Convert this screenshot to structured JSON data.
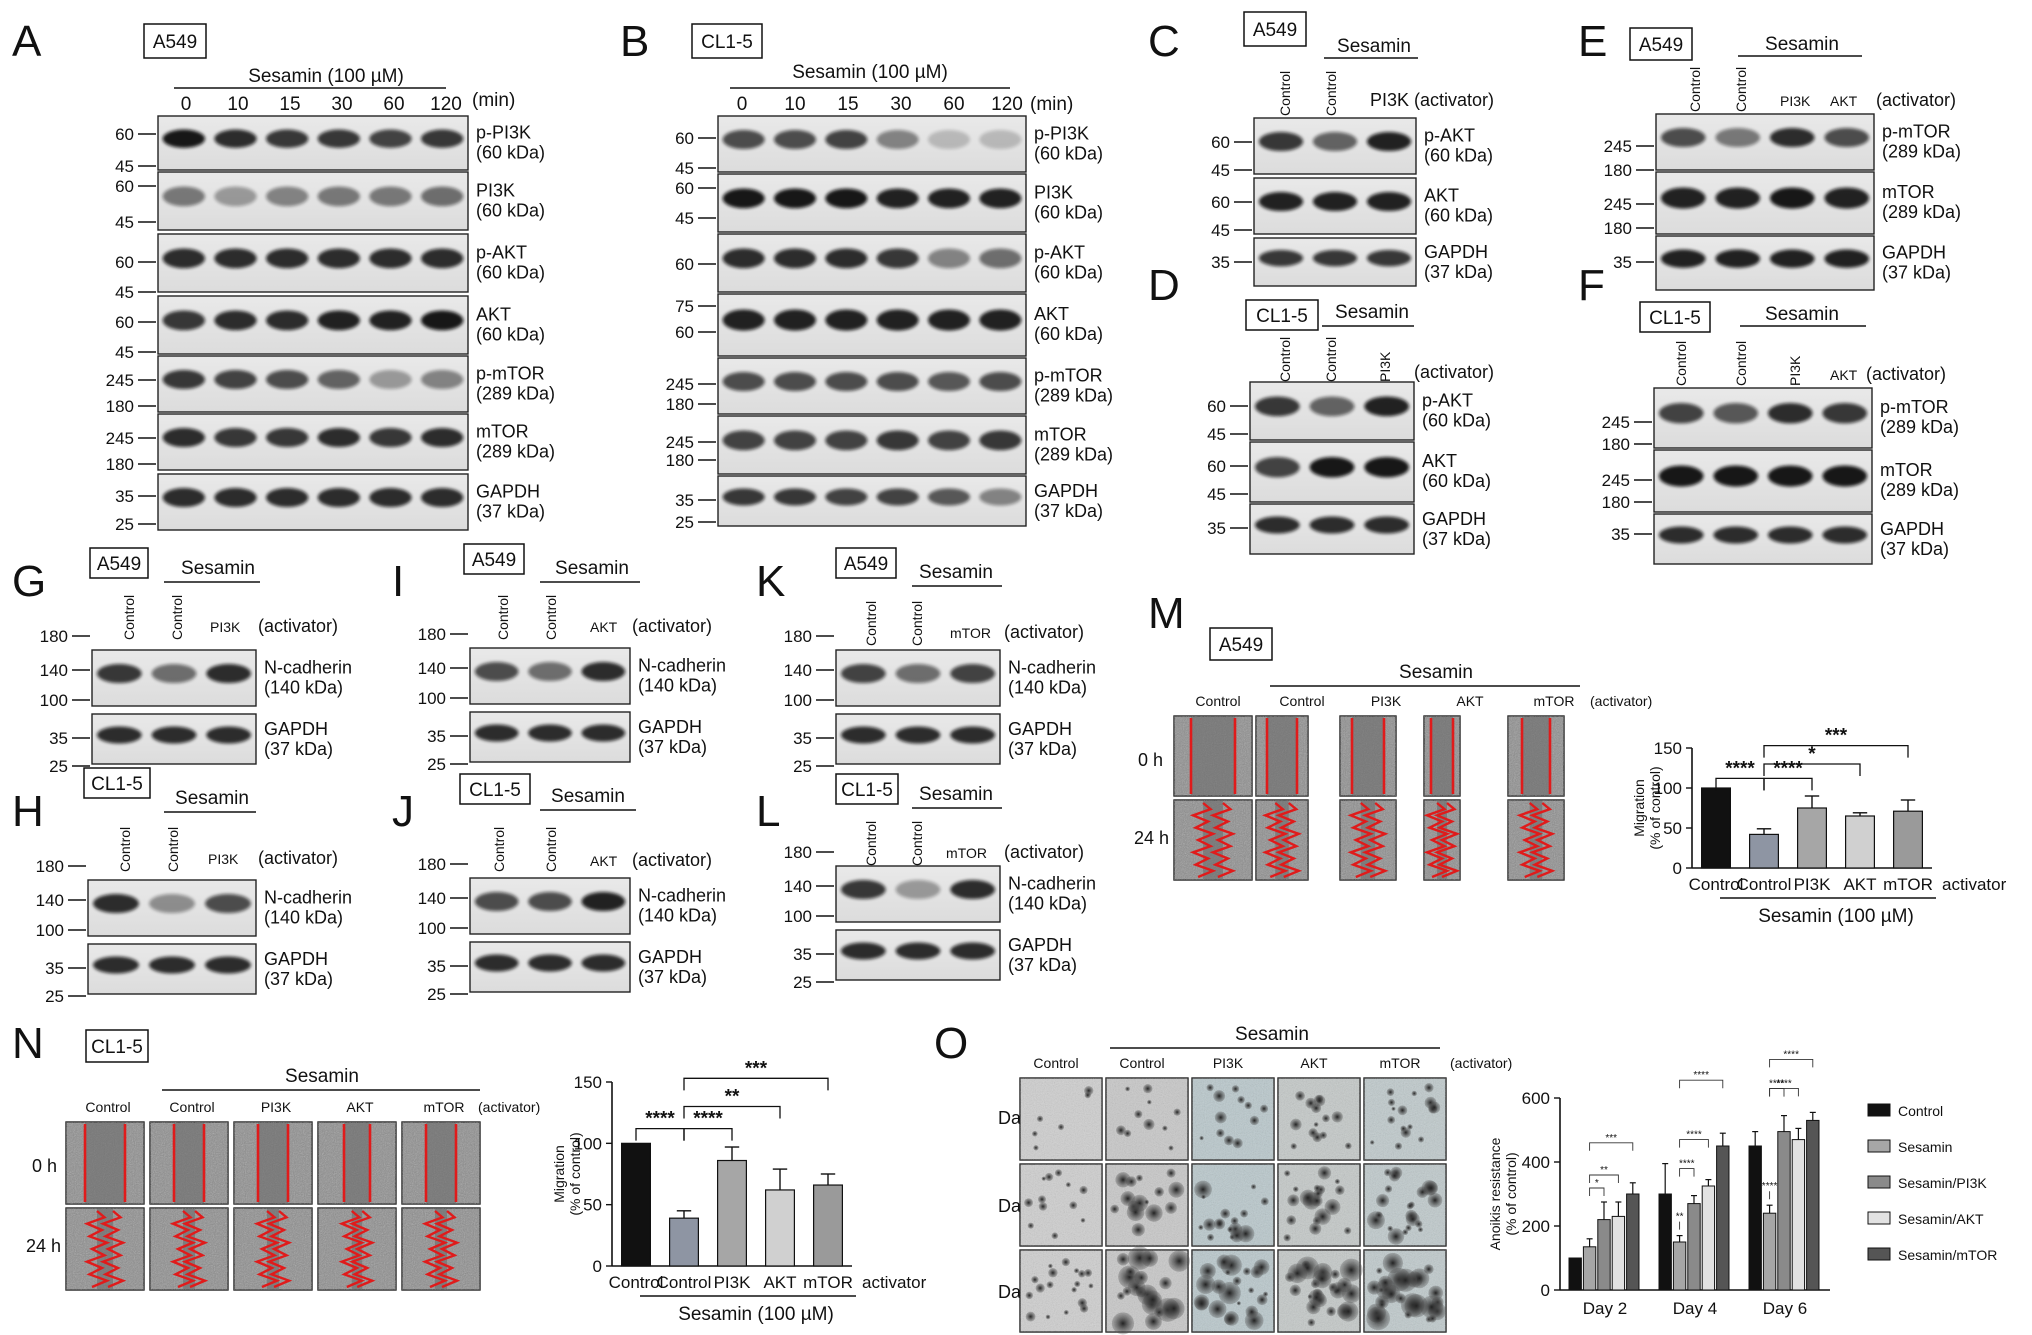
{
  "panels": {
    "A": "A",
    "B": "B",
    "C": "C",
    "D": "D",
    "E": "E",
    "F": "F",
    "G": "G",
    "H": "H",
    "I": "I",
    "J": "J",
    "K": "K",
    "L": "L",
    "M": "M",
    "N": "N",
    "O": "O"
  },
  "cells": {
    "a549": "A549",
    "cl15": "CL1-5"
  },
  "common": {
    "sesamin": "Sesamin",
    "sesamin_dose": "Sesamin (100 µM)",
    "min": "(min)",
    "activator": "(activator)",
    "activator_plain": "activator",
    "control": "Control",
    "pi3k": "PI3K",
    "akt": "AKT",
    "mtor": "mTOR"
  },
  "timepoints": [
    "0",
    "10",
    "15",
    "30",
    "60",
    "120"
  ],
  "proteins": {
    "p_pi3k": [
      "p-PI3K",
      "(60 kDa)"
    ],
    "pi3k": [
      "PI3K",
      "(60 kDa)"
    ],
    "p_akt": [
      "p-AKT",
      "(60 kDa)"
    ],
    "akt": [
      "AKT",
      "(60 kDa)"
    ],
    "p_mtor": [
      "p-mTOR",
      "(289 kDa)"
    ],
    "mtor": [
      "mTOR",
      "(289 kDa)"
    ],
    "gapdh": [
      "GAPDH",
      "(37 kDa)"
    ],
    "ncad": [
      "N-cadherin",
      "(140 kDa)"
    ]
  },
  "mw": {
    "m25": "25",
    "m35": "35",
    "m45": "45",
    "m60": "60",
    "m75": "75",
    "m100": "100",
    "m140": "140",
    "m180": "180",
    "m245": "245"
  },
  "wound": {
    "h0": "0 h",
    "h24": "24 h"
  },
  "anoikis": {
    "d2": "Day 2",
    "d4": "Day 4",
    "d6": "Day 6"
  },
  "chart_data": [
    {
      "type": "bar",
      "panel": "M",
      "categories": [
        "Control",
        "Control",
        "PI3K",
        "AKT",
        "mTOR"
      ],
      "values": [
        100,
        42,
        75,
        65,
        71
      ],
      "errors": [
        0,
        7,
        15,
        4,
        14
      ],
      "colors": [
        "#111111",
        "#8e95a3",
        "#a6a6a6",
        "#d0d0d0",
        "#9a9a9a"
      ],
      "ylabel": "Migration",
      "ylabel2": "(% of control)",
      "xlabel": "Sesamin (100 µM)",
      "x_extra": "activator",
      "ylim": [
        0,
        150
      ],
      "yticks": [
        "0",
        "50",
        "100",
        "150"
      ],
      "significance": [
        "****",
        "****",
        "*",
        "***"
      ]
    },
    {
      "type": "bar",
      "panel": "N",
      "categories": [
        "Control",
        "Control",
        "PI3K",
        "AKT",
        "mTOR"
      ],
      "values": [
        100,
        39,
        86,
        62,
        66
      ],
      "errors": [
        0,
        6,
        11,
        17,
        9
      ],
      "colors": [
        "#111111",
        "#8e95a3",
        "#a6a6a6",
        "#d0d0d0",
        "#9a9a9a"
      ],
      "ylabel": "Migration",
      "ylabel2": "(% of control)",
      "xlabel": "Sesamin (100 µM)",
      "x_extra": "activator",
      "ylim": [
        0,
        150
      ],
      "yticks": [
        "0",
        "50",
        "100",
        "150"
      ],
      "significance": [
        "****",
        "****",
        "**",
        "***"
      ]
    },
    {
      "type": "bar",
      "panel": "O",
      "categories": [
        "Day 2",
        "Day 4",
        "Day 6"
      ],
      "series": [
        {
          "name": "Control",
          "values": [
            100,
            300,
            450
          ],
          "errors": [
            0,
            95,
            45
          ],
          "color": "#111111"
        },
        {
          "name": "Sesamin",
          "values": [
            135,
            150,
            240
          ],
          "errors": [
            25,
            20,
            25
          ],
          "color": "#a6a6a6"
        },
        {
          "name": "Sesamin/PI3K",
          "values": [
            220,
            270,
            495
          ],
          "errors": [
            55,
            25,
            50
          ],
          "color": "#8a8a8a"
        },
        {
          "name": "Sesamin/AKT",
          "values": [
            230,
            325,
            470
          ],
          "errors": [
            45,
            20,
            35
          ],
          "color": "#e2e2e2"
        },
        {
          "name": "Sesamin/mTOR",
          "values": [
            300,
            450,
            530
          ],
          "errors": [
            35,
            40,
            25
          ],
          "color": "#555555"
        }
      ],
      "ylabel": "Anoikis resistance",
      "ylabel2": "(% of control)",
      "ylim": [
        0,
        600
      ],
      "yticks": [
        "0",
        "200",
        "400",
        "600"
      ],
      "significance": {
        "d2": [
          "*",
          "**",
          "***"
        ],
        "d4": [
          "**",
          "****",
          "****",
          "****"
        ],
        "d6": [
          "****",
          "****",
          "****",
          "****"
        ]
      }
    }
  ]
}
